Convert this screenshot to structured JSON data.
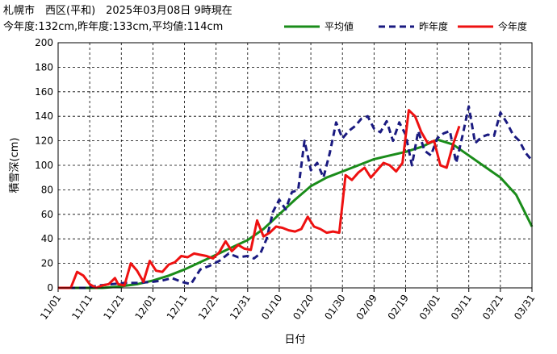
{
  "header": {
    "line1": "札幌市　西区(平和)　2025年03月08日 9時現在",
    "line2": "今年度:132cm,昨年度:133cm,平均値:114cm"
  },
  "chart_data": {
    "type": "line",
    "xlabel": "日付",
    "ylabel": "積雪深(cm)",
    "ylim": [
      0,
      200
    ],
    "yticks": [
      0,
      20,
      40,
      60,
      80,
      100,
      120,
      140,
      160,
      180,
      200
    ],
    "grid": true,
    "legend_position": "top-right",
    "x_start": "11/01",
    "x_end": "03/31",
    "x_tick_labels": [
      "11/01",
      "11/11",
      "11/21",
      "12/01",
      "12/11",
      "12/21",
      "12/31",
      "01/10",
      "01/20",
      "01/30",
      "02/09",
      "02/19",
      "03/01",
      "03/11",
      "03/21",
      "03/31"
    ],
    "series": [
      {
        "name": "平均値",
        "color": "#1a8c1a",
        "style": "solid",
        "x": [
          "11/01",
          "11/08",
          "11/15",
          "11/20",
          "11/26",
          "12/01",
          "12/06",
          "12/11",
          "12/16",
          "12/21",
          "12/26",
          "12/31",
          "01/05",
          "01/10",
          "01/15",
          "01/20",
          "01/25",
          "01/30",
          "02/04",
          "02/09",
          "02/14",
          "02/19",
          "02/24",
          "03/01",
          "03/06",
          "03/11",
          "03/16",
          "03/21",
          "03/26",
          "03/31"
        ],
        "values": [
          0,
          0,
          0,
          1,
          3,
          6,
          10,
          15,
          21,
          27,
          33,
          39,
          48,
          60,
          72,
          83,
          90,
          95,
          100,
          105,
          108,
          111,
          115,
          121,
          117,
          108,
          99,
          90,
          76,
          50
        ]
      },
      {
        "name": "昨年度",
        "color": "#1a1a80",
        "style": "dashed",
        "x": [
          "11/01",
          "11/05",
          "11/10",
          "11/14",
          "11/18",
          "11/22",
          "11/26",
          "12/01",
          "12/04",
          "12/07",
          "12/10",
          "12/13",
          "12/16",
          "12/19",
          "12/22",
          "12/25",
          "12/28",
          "12/31",
          "01/02",
          "01/04",
          "01/06",
          "01/08",
          "01/10",
          "01/12",
          "01/14",
          "01/16",
          "01/18",
          "01/20",
          "01/22",
          "01/24",
          "01/26",
          "01/28",
          "01/30",
          "02/01",
          "02/03",
          "02/05",
          "02/07",
          "02/09",
          "02/11",
          "02/13",
          "02/15",
          "02/17",
          "02/19",
          "02/21",
          "02/23",
          "02/25",
          "02/27",
          "03/01",
          "03/03",
          "03/05",
          "03/07",
          "03/09",
          "03/11",
          "03/13",
          "03/15",
          "03/17",
          "03/19",
          "03/21",
          "03/23",
          "03/25",
          "03/27",
          "03/29",
          "03/31"
        ],
        "values": [
          0,
          0,
          0,
          2,
          3,
          4,
          4,
          5,
          6,
          8,
          5,
          3,
          15,
          18,
          22,
          28,
          25,
          26,
          24,
          28,
          40,
          62,
          72,
          64,
          78,
          80,
          120,
          96,
          102,
          90,
          110,
          135,
          122,
          128,
          132,
          138,
          140,
          130,
          127,
          136,
          120,
          135,
          125,
          100,
          128,
          112,
          108,
          122,
          126,
          128,
          102,
          124,
          148,
          118,
          123,
          125,
          124,
          143,
          135,
          125,
          120,
          110,
          104
        ]
      },
      {
        "name": "今年度",
        "color": "#ee1111",
        "style": "solid",
        "x": [
          "11/01",
          "11/05",
          "11/07",
          "11/09",
          "11/11",
          "11/13",
          "11/15",
          "11/17",
          "11/19",
          "11/20",
          "11/22",
          "11/24",
          "11/26",
          "11/28",
          "11/30",
          "12/02",
          "12/04",
          "12/06",
          "12/08",
          "12/10",
          "12/12",
          "12/14",
          "12/16",
          "12/18",
          "12/20",
          "12/22",
          "12/24",
          "12/26",
          "12/28",
          "12/30",
          "01/01",
          "01/03",
          "01/05",
          "01/07",
          "01/09",
          "01/11",
          "01/13",
          "01/15",
          "01/17",
          "01/19",
          "01/21",
          "01/23",
          "01/25",
          "01/27",
          "01/29",
          "01/31",
          "02/02",
          "02/04",
          "02/06",
          "02/08",
          "02/10",
          "02/12",
          "02/14",
          "02/16",
          "02/18",
          "02/20",
          "02/22",
          "02/24",
          "02/26",
          "02/28",
          "03/02",
          "03/04",
          "03/06",
          "03/08"
        ],
        "values": [
          0,
          0,
          13,
          10,
          3,
          0,
          2,
          3,
          8,
          3,
          2,
          20,
          14,
          5,
          22,
          14,
          13,
          19,
          21,
          26,
          25,
          28,
          27,
          26,
          24,
          29,
          38,
          30,
          35,
          32,
          31,
          55,
          42,
          45,
          50,
          49,
          47,
          46,
          48,
          58,
          50,
          48,
          45,
          46,
          45,
          92,
          88,
          94,
          98,
          90,
          96,
          102,
          100,
          95,
          102,
          145,
          140,
          127,
          118,
          120,
          100,
          98,
          117,
          132
        ]
      }
    ]
  }
}
